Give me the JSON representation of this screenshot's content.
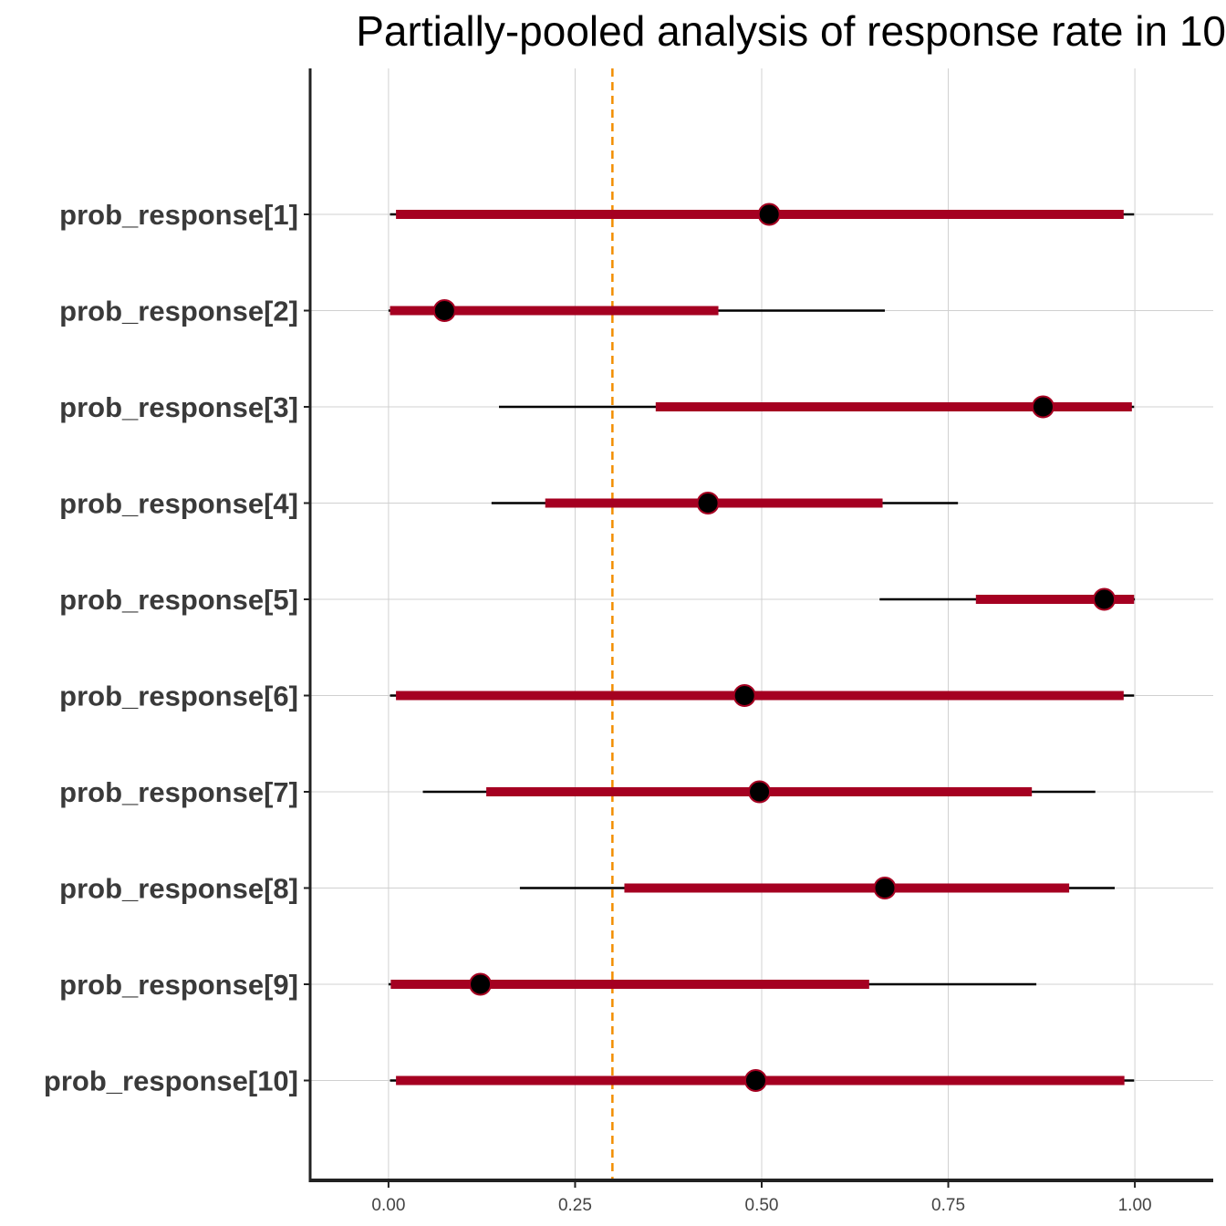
{
  "chart_data": {
    "type": "interval",
    "title": "Partially-pooled analysis of response rate in 10",
    "xlabel": "",
    "ylabel": "",
    "xlim": [
      -0.105,
      1.105
    ],
    "x_ticks": [
      "0.00",
      "0.25",
      "0.50",
      "0.75",
      "1.00"
    ],
    "x_tick_values": [
      0,
      0.25,
      0.5,
      0.75,
      1.0
    ],
    "reference_line": {
      "x": 0.3,
      "style": "dashed",
      "color": "#f28e00"
    },
    "grid": true,
    "colors": {
      "inner_interval": "#a50021",
      "outer_interval": "#000000",
      "point_fill": "#000000",
      "point_stroke": "#a50021",
      "axis": "#222222",
      "grid": "#d0d0d0"
    },
    "parameters": [
      {
        "label": "prob_response[1]",
        "median": 0.51,
        "inner": [
          0.01,
          0.985
        ],
        "outer": [
          0.002,
          0.999
        ]
      },
      {
        "label": "prob_response[2]",
        "median": 0.075,
        "inner": [
          0.002,
          0.442
        ],
        "outer": [
          0.0,
          0.665
        ]
      },
      {
        "label": "prob_response[3]",
        "median": 0.877,
        "inner": [
          0.358,
          0.996
        ],
        "outer": [
          0.148,
          0.999
        ]
      },
      {
        "label": "prob_response[4]",
        "median": 0.428,
        "inner": [
          0.21,
          0.662
        ],
        "outer": [
          0.138,
          0.763
        ]
      },
      {
        "label": "prob_response[5]",
        "median": 0.959,
        "inner": [
          0.787,
          0.999
        ],
        "outer": [
          0.658,
          1.0
        ]
      },
      {
        "label": "prob_response[6]",
        "median": 0.477,
        "inner": [
          0.01,
          0.985
        ],
        "outer": [
          0.002,
          0.999
        ]
      },
      {
        "label": "prob_response[7]",
        "median": 0.497,
        "inner": [
          0.131,
          0.862
        ],
        "outer": [
          0.046,
          0.947
        ]
      },
      {
        "label": "prob_response[8]",
        "median": 0.665,
        "inner": [
          0.316,
          0.912
        ],
        "outer": [
          0.176,
          0.973
        ]
      },
      {
        "label": "prob_response[9]",
        "median": 0.123,
        "inner": [
          0.003,
          0.644
        ],
        "outer": [
          0.0,
          0.868
        ]
      },
      {
        "label": "prob_response[10]",
        "median": 0.492,
        "inner": [
          0.01,
          0.986
        ],
        "outer": [
          0.002,
          0.999
        ]
      }
    ]
  }
}
